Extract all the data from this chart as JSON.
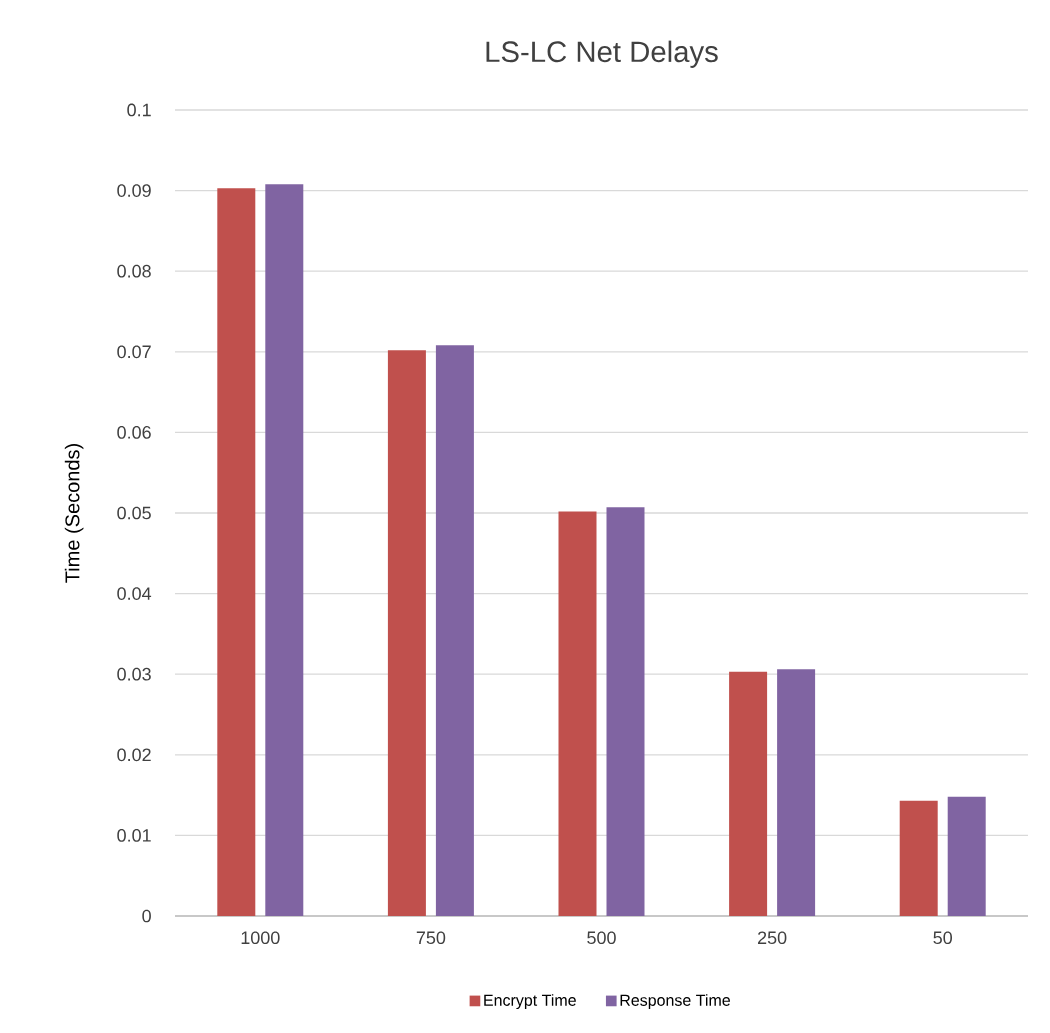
{
  "chart_data": {
    "type": "bar",
    "title": "LS-LC Net Delays",
    "ylabel": "Time (Seconds)",
    "categories": [
      "1000",
      "750",
      "500",
      "250",
      "50"
    ],
    "series": [
      {
        "name": "Encrypt Time",
        "color": "#c0504d",
        "values": [
          0.0903,
          0.0702,
          0.0502,
          0.0303,
          0.0143
        ]
      },
      {
        "name": "Response Time",
        "color": "#8064a2",
        "values": [
          0.0908,
          0.0708,
          0.0507,
          0.0306,
          0.0148
        ]
      }
    ],
    "ylim": [
      0,
      0.1
    ],
    "yticks": [
      0,
      0.01,
      0.02,
      0.03,
      0.04,
      0.05,
      0.06,
      0.07,
      0.08,
      0.09,
      0.1
    ],
    "grid": "y",
    "legend": "bottom"
  }
}
